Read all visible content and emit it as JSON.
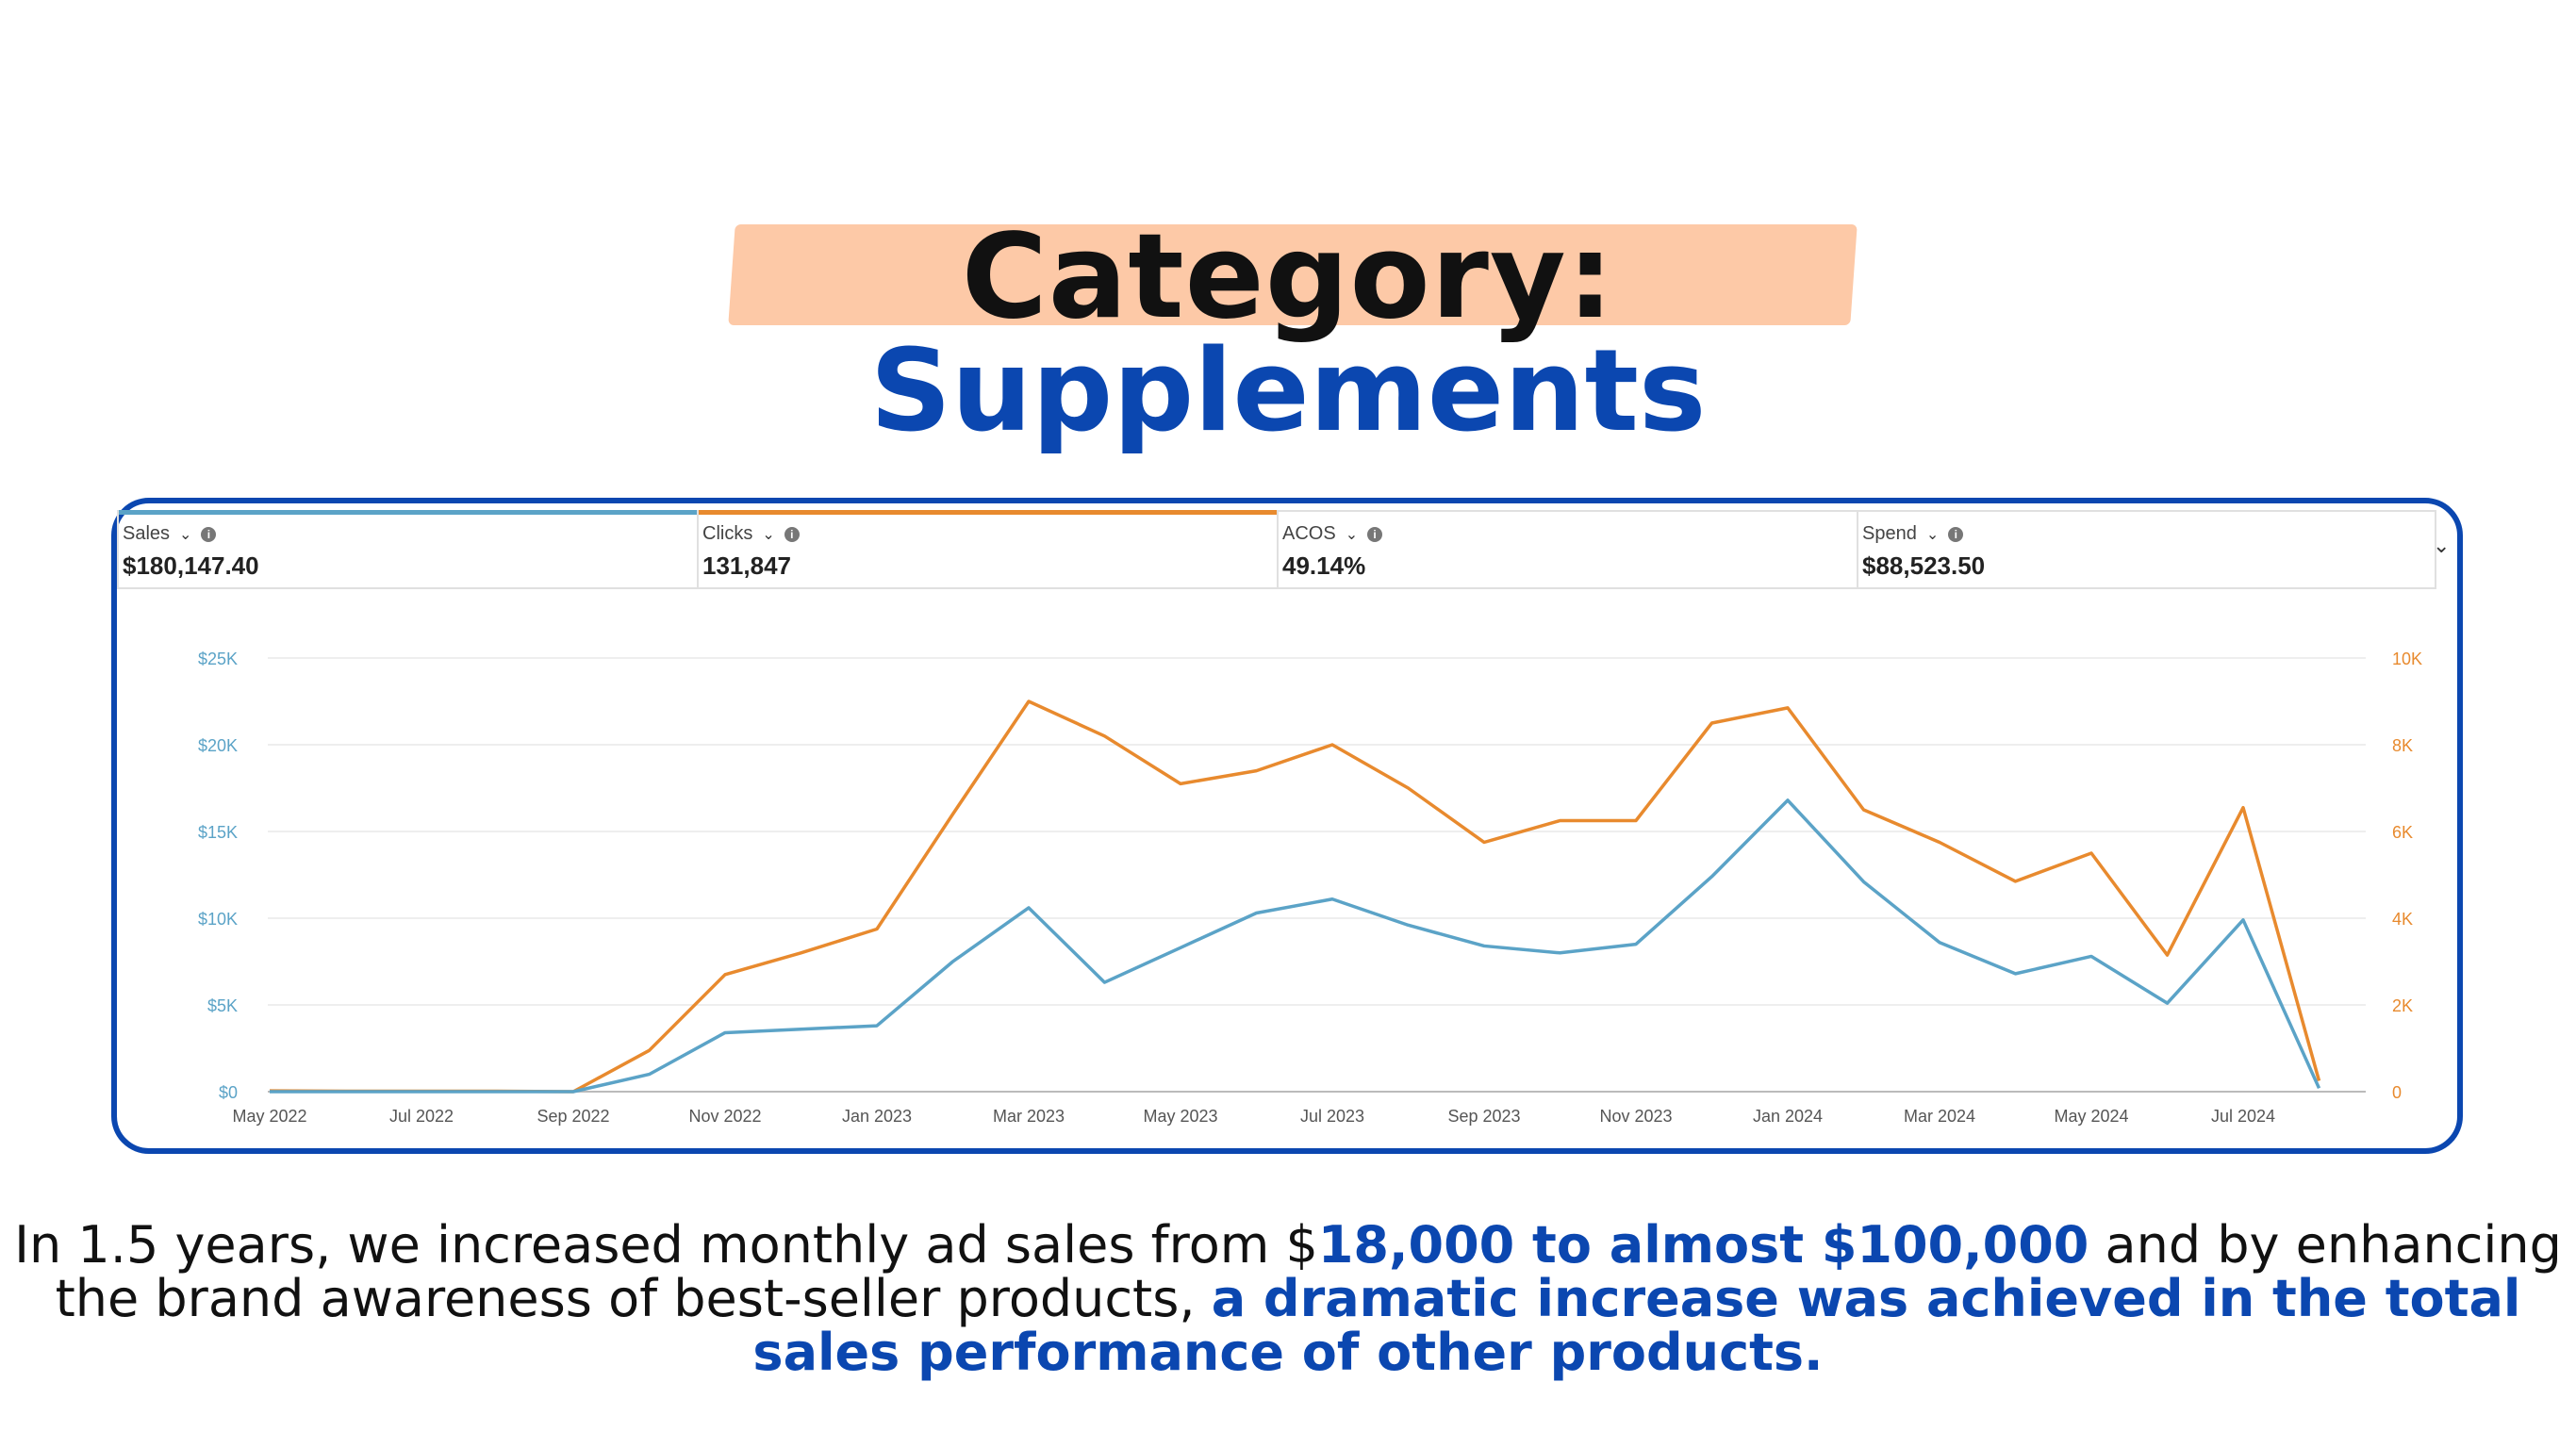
{
  "title": {
    "line1": "Category:",
    "line2": "Supplements"
  },
  "colors": {
    "highlight": "#fdc9a7",
    "brand_blue": "#0b47b0",
    "sales_line": "#5ba3c7",
    "clicks_line": "#e88a2e"
  },
  "metrics": [
    {
      "label": "Sales",
      "value": "$180,147.40",
      "accent": "#5ba3c7"
    },
    {
      "label": "Clicks",
      "value": "131,847",
      "accent": "#e88a2e"
    },
    {
      "label": "ACOS",
      "value": "49.14%",
      "accent": ""
    },
    {
      "label": "Spend",
      "value": "$88,523.50",
      "accent": ""
    }
  ],
  "chart_data": {
    "type": "line",
    "x": [
      "May 2022",
      "Jun 2022",
      "Jul 2022",
      "Aug 2022",
      "Sep 2022",
      "Oct 2022",
      "Nov 2022",
      "Dec 2022",
      "Jan 2023",
      "Feb 2023",
      "Mar 2023",
      "Apr 2023",
      "May 2023",
      "Jun 2023",
      "Jul 2023",
      "Aug 2023",
      "Sep 2023",
      "Oct 2023",
      "Nov 2023",
      "Dec 2023",
      "Jan 2024",
      "Feb 2024",
      "Mar 2024",
      "Apr 2024",
      "May 2024",
      "Jun 2024",
      "Jul 2024",
      "Aug 2024"
    ],
    "x_tick_labels": [
      "May 2022",
      "Jul 2022",
      "Sep 2022",
      "Nov 2022",
      "Jan 2023",
      "Mar 2023",
      "May 2023",
      "Jul 2023",
      "Sep 2023",
      "Nov 2023",
      "Jan 2024",
      "Mar 2024",
      "May 2024",
      "Jul 2024"
    ],
    "left_axis": {
      "ticks": [
        "$0",
        "$5K",
        "$10K",
        "$15K",
        "$20K",
        "$25K"
      ],
      "range": [
        0,
        25000
      ]
    },
    "right_axis": {
      "ticks": [
        "0",
        "2K",
        "4K",
        "6K",
        "8K",
        "10K"
      ],
      "range": [
        0,
        10000
      ]
    },
    "grid": true,
    "series": [
      {
        "name": "Sales",
        "axis": "left",
        "values": [
          0,
          0,
          0,
          0,
          0,
          1000,
          3400,
          3600,
          3800,
          7500,
          10600,
          6300,
          8300,
          10300,
          11100,
          9600,
          8400,
          8000,
          8500,
          12400,
          16800,
          12100,
          8600,
          6800,
          7800,
          5100,
          9900,
          200
        ]
      },
      {
        "name": "Clicks",
        "axis": "right",
        "values": [
          20,
          10,
          10,
          10,
          0,
          950,
          2700,
          3200,
          3750,
          6400,
          9000,
          8200,
          7100,
          7400,
          8000,
          7000,
          5750,
          6250,
          6250,
          8500,
          8850,
          6500,
          5750,
          4850,
          5500,
          3150,
          6550,
          250
        ]
      }
    ]
  },
  "caption": {
    "part1": "In 1.5 years, we increased monthly ad sales from $",
    "hl1": "18,000 to almost $100,000",
    "part2": " and by enhancing the brand awareness of best-seller products, ",
    "hl2": "a dramatic increase was achieved in the total sales performance of other products."
  }
}
